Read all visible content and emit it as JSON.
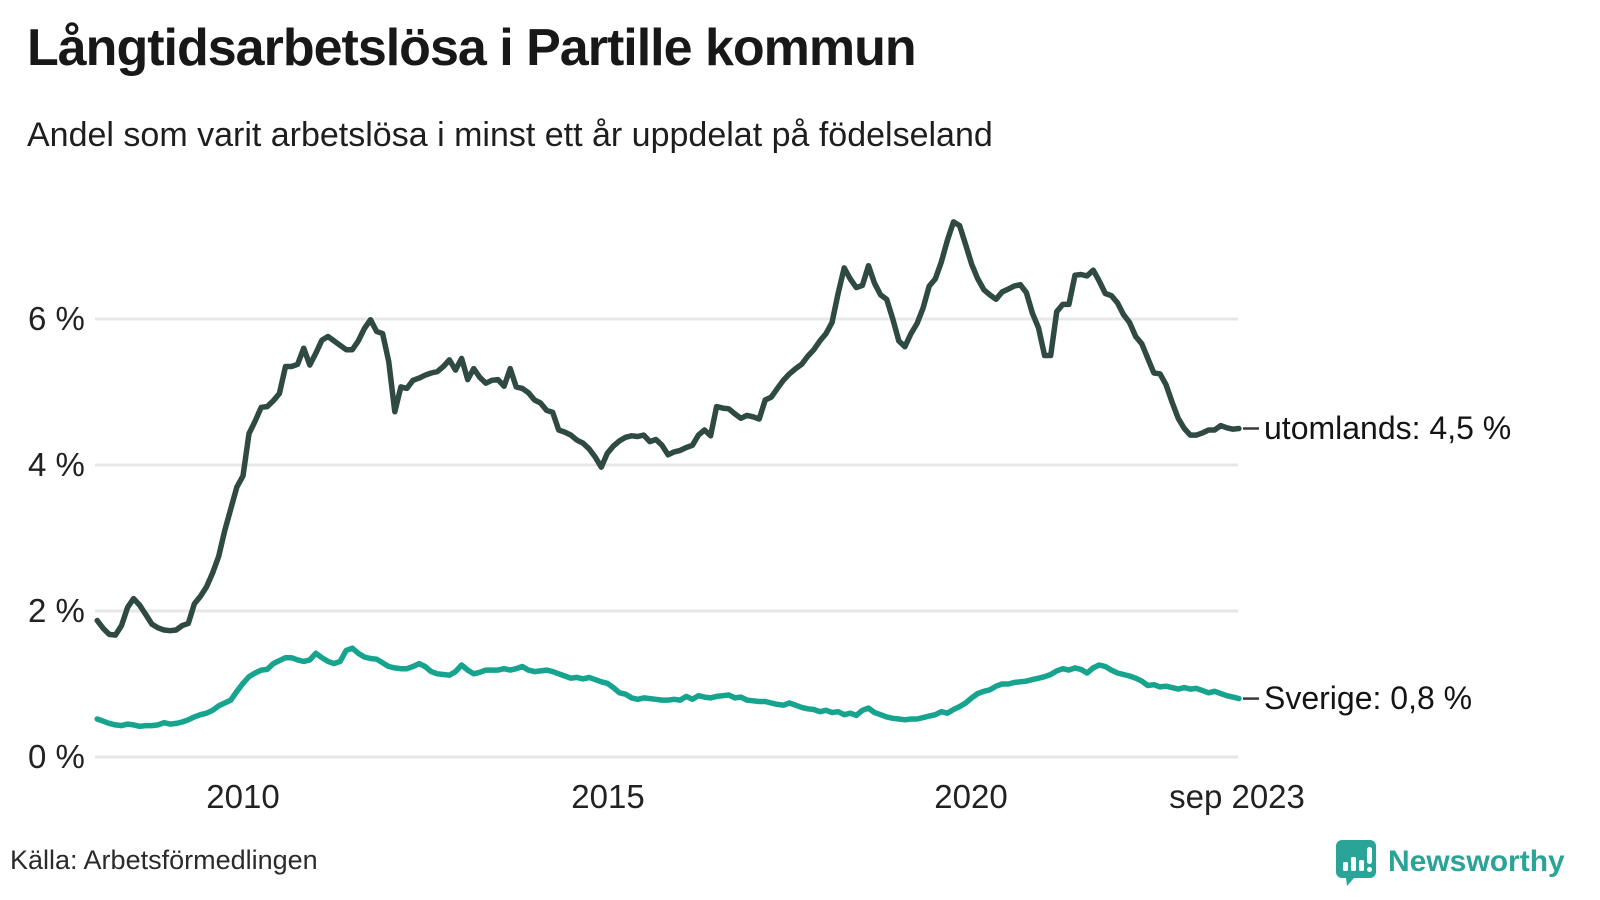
{
  "header": {
    "title": "Långtidsarbetslösa i Partille kommun",
    "subtitle": "Andel som varit arbetslösa i minst ett år uppdelat på födelseland"
  },
  "axes": {
    "yticks": [
      {
        "label": "6 %"
      },
      {
        "label": "4 %"
      },
      {
        "label": "2 %"
      },
      {
        "label": "0 %"
      }
    ],
    "xticks": [
      {
        "label": "2010"
      },
      {
        "label": "2015"
      },
      {
        "label": "2020"
      },
      {
        "label": "sep 2023"
      }
    ]
  },
  "end_labels": {
    "utomlands": "utomlands: 4,5 %",
    "sverige": "Sverige: 0,8 %"
  },
  "footer": {
    "source": "Källa: Arbetsförmedlingen",
    "logo_text": "Newsworthy"
  },
  "colors": {
    "utomlands_line": "#2e4a43",
    "sverige_line": "#16a48f",
    "gridline": "#e7e7ea",
    "label_dash": "#3a3a3a",
    "logo_teal": "#2aa496"
  },
  "chart_data": {
    "type": "line",
    "title": "Långtidsarbetslösa i Partille kommun",
    "subtitle": "Andel som varit arbetslösa i minst ett år uppdelat på födelseland",
    "unit": "percent",
    "frequency": "monthly",
    "x_start": "2008-01",
    "x_end": "2023-09",
    "xlabel": "",
    "ylabel": "",
    "ylim": [
      0,
      7.5
    ],
    "gridlines_pct": [
      0,
      2,
      4,
      6
    ],
    "grid": "horizontal",
    "legend_position": "end-of-line-labels",
    "series": [
      {
        "name": "utomlands",
        "end_value_label": "4,5 %",
        "color": "#2e4a43",
        "values": [
          1.87,
          1.76,
          1.68,
          1.67,
          1.8,
          2.05,
          2.17,
          2.08,
          1.95,
          1.82,
          1.77,
          1.74,
          1.73,
          1.74,
          1.8,
          1.83,
          2.1,
          2.2,
          2.33,
          2.52,
          2.75,
          3.1,
          3.4,
          3.7,
          3.85,
          4.43,
          4.6,
          4.79,
          4.8,
          4.88,
          4.98,
          5.35,
          5.35,
          5.38,
          5.6,
          5.37,
          5.53,
          5.71,
          5.76,
          5.7,
          5.64,
          5.58,
          5.58,
          5.7,
          5.87,
          5.99,
          5.83,
          5.8,
          5.42,
          4.73,
          5.07,
          5.05,
          5.16,
          5.19,
          5.23,
          5.26,
          5.28,
          5.35,
          5.44,
          5.3,
          5.46,
          5.17,
          5.32,
          5.2,
          5.12,
          5.16,
          5.17,
          5.08,
          5.32,
          5.07,
          5.05,
          4.99,
          4.89,
          4.85,
          4.75,
          4.72,
          4.48,
          4.45,
          4.41,
          4.34,
          4.3,
          4.22,
          4.11,
          3.97,
          4.16,
          4.26,
          4.33,
          4.38,
          4.4,
          4.39,
          4.41,
          4.32,
          4.35,
          4.27,
          4.14,
          4.18,
          4.2,
          4.24,
          4.27,
          4.41,
          4.48,
          4.4,
          4.8,
          4.78,
          4.77,
          4.7,
          4.64,
          4.68,
          4.66,
          4.63,
          4.89,
          4.93,
          5.05,
          5.16,
          5.25,
          5.32,
          5.38,
          5.49,
          5.58,
          5.7,
          5.8,
          5.95,
          6.35,
          6.7,
          6.55,
          6.43,
          6.46,
          6.73,
          6.49,
          6.33,
          6.27,
          6.0,
          5.7,
          5.62,
          5.8,
          5.94,
          6.15,
          6.45,
          6.55,
          6.78,
          7.08,
          7.33,
          7.28,
          7.02,
          6.75,
          6.55,
          6.4,
          6.33,
          6.27,
          6.37,
          6.41,
          6.45,
          6.47,
          6.36,
          6.08,
          5.88,
          5.5,
          5.5,
          6.1,
          6.2,
          6.2,
          6.6,
          6.61,
          6.59,
          6.67,
          6.52,
          6.35,
          6.32,
          6.22,
          6.06,
          5.95,
          5.76,
          5.66,
          5.46,
          5.26,
          5.25,
          5.1,
          4.86,
          4.64,
          4.5,
          4.41,
          4.41,
          4.44,
          4.48,
          4.48,
          4.54,
          4.51,
          4.49,
          4.5
        ]
      },
      {
        "name": "Sverige",
        "end_value_label": "0,8 %",
        "color": "#16a48f",
        "values": [
          0.52,
          0.49,
          0.46,
          0.44,
          0.43,
          0.45,
          0.44,
          0.42,
          0.43,
          0.43,
          0.44,
          0.47,
          0.45,
          0.46,
          0.48,
          0.51,
          0.55,
          0.58,
          0.6,
          0.64,
          0.7,
          0.74,
          0.78,
          0.9,
          1.01,
          1.1,
          1.15,
          1.19,
          1.2,
          1.28,
          1.32,
          1.36,
          1.36,
          1.33,
          1.31,
          1.33,
          1.42,
          1.36,
          1.31,
          1.28,
          1.31,
          1.46,
          1.49,
          1.42,
          1.37,
          1.35,
          1.34,
          1.29,
          1.24,
          1.22,
          1.21,
          1.21,
          1.24,
          1.28,
          1.24,
          1.17,
          1.14,
          1.13,
          1.12,
          1.17,
          1.26,
          1.19,
          1.14,
          1.16,
          1.19,
          1.19,
          1.19,
          1.21,
          1.19,
          1.21,
          1.24,
          1.19,
          1.17,
          1.18,
          1.19,
          1.17,
          1.14,
          1.11,
          1.08,
          1.09,
          1.07,
          1.09,
          1.06,
          1.03,
          1.01,
          0.95,
          0.88,
          0.86,
          0.81,
          0.79,
          0.81,
          0.8,
          0.79,
          0.78,
          0.78,
          0.79,
          0.78,
          0.83,
          0.79,
          0.84,
          0.82,
          0.81,
          0.83,
          0.84,
          0.85,
          0.81,
          0.82,
          0.78,
          0.77,
          0.76,
          0.76,
          0.74,
          0.72,
          0.71,
          0.74,
          0.71,
          0.68,
          0.66,
          0.65,
          0.62,
          0.64,
          0.61,
          0.62,
          0.58,
          0.6,
          0.57,
          0.64,
          0.67,
          0.61,
          0.58,
          0.55,
          0.53,
          0.52,
          0.51,
          0.52,
          0.52,
          0.54,
          0.56,
          0.58,
          0.62,
          0.6,
          0.65,
          0.69,
          0.74,
          0.81,
          0.87,
          0.9,
          0.92,
          0.97,
          1.0,
          1.0,
          1.02,
          1.03,
          1.04,
          1.06,
          1.08,
          1.1,
          1.13,
          1.18,
          1.21,
          1.19,
          1.22,
          1.2,
          1.15,
          1.22,
          1.26,
          1.24,
          1.19,
          1.15,
          1.13,
          1.11,
          1.08,
          1.04,
          0.98,
          0.99,
          0.96,
          0.97,
          0.95,
          0.93,
          0.95,
          0.93,
          0.94,
          0.91,
          0.88,
          0.9,
          0.87,
          0.84,
          0.82,
          0.8
        ]
      }
    ]
  }
}
